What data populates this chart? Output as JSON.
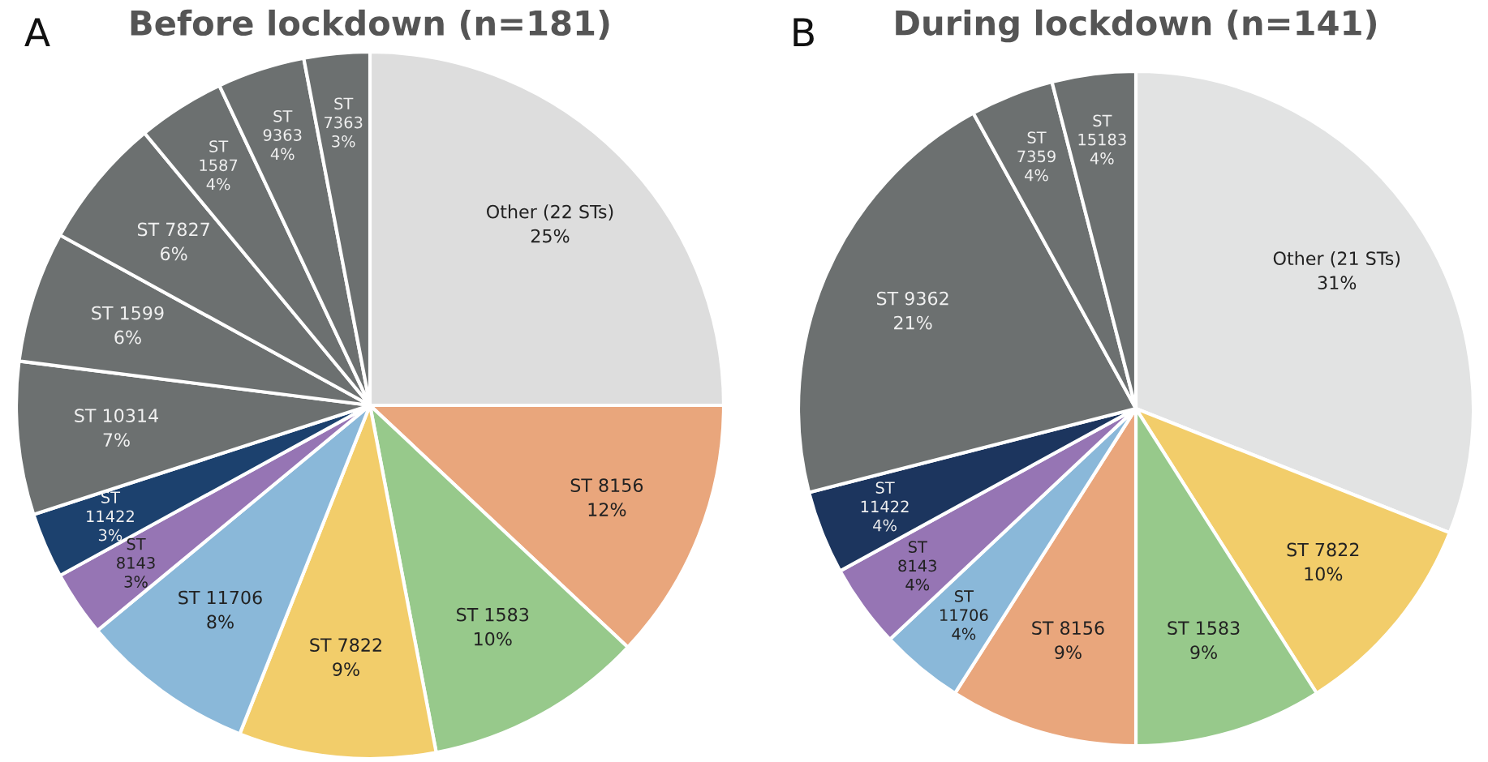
{
  "chart_data": [
    {
      "type": "pie",
      "title": "Before lockdown (n=181)",
      "annotations": [
        "A"
      ],
      "categories": [
        "Other (22 STs)",
        "ST 8156",
        "ST 1583",
        "ST 7822",
        "ST 11706",
        "ST 8143",
        "ST 11422",
        "ST 10314",
        "ST 1599",
        "ST 7827",
        "ST 1587",
        "ST 9363",
        "ST 7363"
      ],
      "values": [
        25,
        12,
        10,
        9,
        8,
        3,
        3,
        7,
        6,
        6,
        4,
        4,
        3
      ],
      "value_labels": [
        "25%",
        "12%",
        "10%",
        "9%",
        "8%",
        "3%",
        "3%",
        "7%",
        "6%",
        "6%",
        "4%",
        "4%",
        "3%"
      ],
      "colors": [
        "#dddddd",
        "#e9a67c",
        "#97c98b",
        "#f2cd6a",
        "#8ab8d9",
        "#9675b4",
        "#1c416e",
        "#6c7070",
        "#6c7070",
        "#6c7070",
        "#6c7070",
        "#6c7070",
        "#6c7070"
      ]
    },
    {
      "type": "pie",
      "title": "During lockdown (n=141)",
      "annotations": [
        "B"
      ],
      "categories": [
        "Other (21 STs)",
        "ST 7822",
        "ST 1583",
        "ST 8156",
        "ST 11706",
        "ST 8143",
        "ST 11422",
        "ST 9362",
        "ST 7359",
        "ST 15183"
      ],
      "values": [
        31,
        10,
        9,
        9,
        4,
        4,
        4,
        21,
        4,
        4
      ],
      "value_labels": [
        "31%",
        "10%",
        "9%",
        "9%",
        "4%",
        "4%",
        "4%",
        "21%",
        "4%",
        "4%"
      ],
      "colors": [
        "#e2e3e3",
        "#f2cd6a",
        "#97c98b",
        "#e9a67c",
        "#8ab8d9",
        "#9675b4",
        "#1c355e",
        "#6c7070",
        "#6c7070",
        "#6c7070"
      ]
    }
  ]
}
